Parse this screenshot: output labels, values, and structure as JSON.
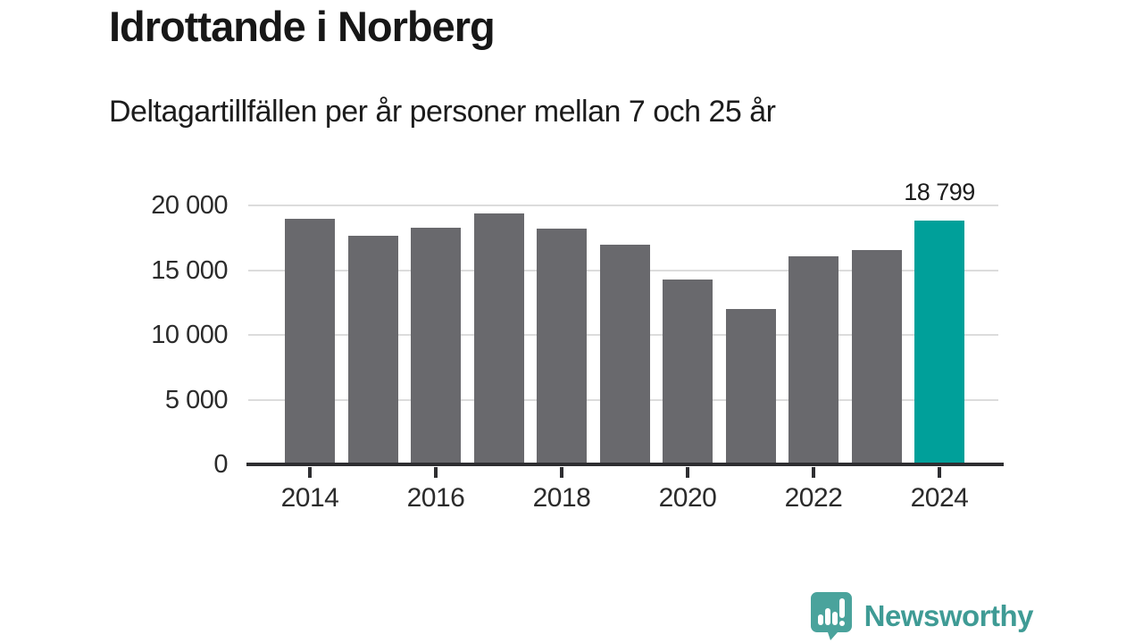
{
  "header": {
    "title": "Idrottande i Norberg",
    "subtitle": "Deltagartillfällen per år personer mellan 7 och 25 år"
  },
  "chart_data": {
    "type": "bar",
    "title": "Idrottande i Norberg",
    "subtitle": "Deltagartillfällen per år personer mellan 7 och 25 år",
    "categories": [
      2014,
      2015,
      2016,
      2017,
      2018,
      2019,
      2020,
      2021,
      2022,
      2023,
      2024
    ],
    "values": [
      19000,
      17650,
      18250,
      19400,
      18200,
      16950,
      14250,
      12000,
      16050,
      16550,
      18799
    ],
    "xlabel": "",
    "ylabel": "",
    "ylim": [
      0,
      20000
    ],
    "ytick_values": [
      0,
      5000,
      10000,
      15000,
      20000
    ],
    "ytick_labels": [
      "0",
      "5 000",
      "10 000",
      "15 000",
      "20 000"
    ],
    "xtick_labels": [
      "2014",
      "2016",
      "2018",
      "2020",
      "2022",
      "2024"
    ],
    "grid": "horizontal-only",
    "legend": "none",
    "bar_color": "#69696d",
    "highlight_index": 10,
    "highlight_color": "#00a09a",
    "highlight_annotation": "18 799"
  },
  "footer": {
    "brand": "Newsworthy",
    "brand_color": "#3f9b95",
    "logo_icon": "speech-bubble-bar-chart-exclamation-icon",
    "logo_bubble_color": "#4aa39c"
  }
}
